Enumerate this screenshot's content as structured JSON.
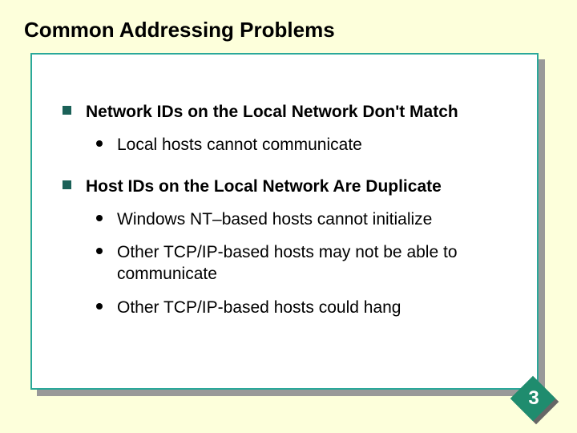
{
  "slide": {
    "background_color": "#fdffdb",
    "title": "Common Addressing Problems",
    "content_box": {
      "border_color": "#2aa89a",
      "background_color": "#ffffff",
      "shadow_color": "#999999"
    },
    "bullets": {
      "square_color": "#1b6158",
      "dot_color": "#000000",
      "main1": "Network IDs on the Local Network Don't Match",
      "sub1a": "Local hosts cannot communicate",
      "main2": "Host IDs on the Local Network Are Duplicate",
      "sub2a": "Windows NT–based hosts cannot initialize",
      "sub2b": "Other TCP/IP-based hosts may not be able to communicate",
      "sub2c": "Other TCP/IP-based hosts could hang"
    },
    "page_number": {
      "value": "3",
      "fill_color": "#1f8c6e",
      "text_color": "#ffffff"
    }
  }
}
